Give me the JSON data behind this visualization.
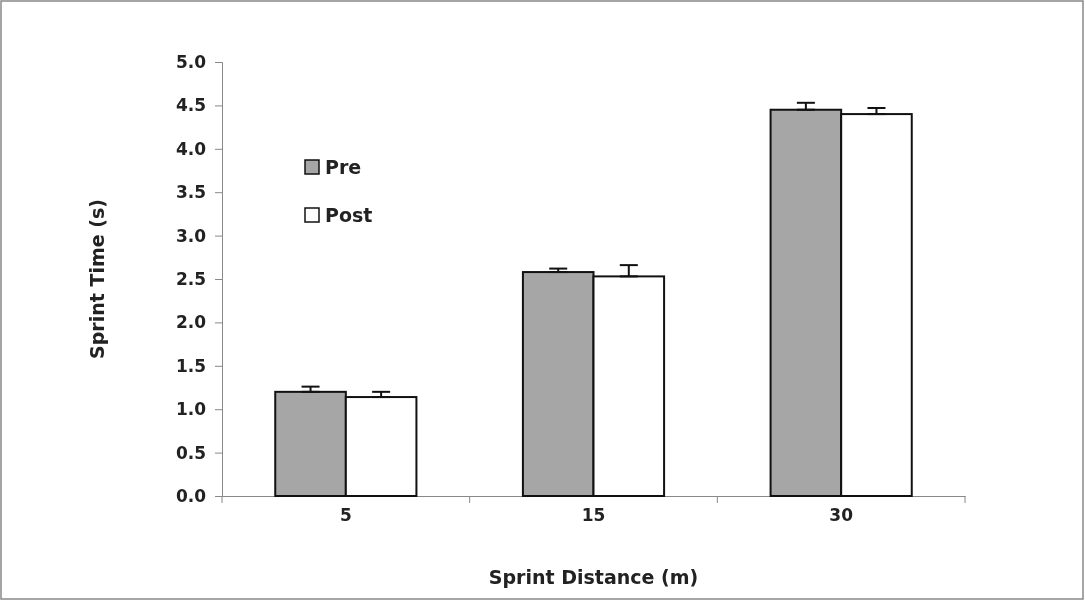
{
  "chart_data": {
    "type": "bar",
    "xlabel": "Sprint Distance (m)",
    "ylabel": "Sprint Time (s)",
    "categories": [
      "5",
      "15",
      "30"
    ],
    "series": [
      {
        "name": "Pre",
        "color": "#a6a6a6",
        "values": [
          1.2,
          2.58,
          4.45
        ],
        "errors": [
          [
            1.2,
            1.26
          ],
          [
            2.58,
            2.62
          ],
          [
            4.45,
            4.53
          ]
        ]
      },
      {
        "name": "Post",
        "color": "#ffffff",
        "values": [
          1.14,
          2.53,
          4.4
        ],
        "errors": [
          [
            1.14,
            1.2
          ],
          [
            2.53,
            2.66
          ],
          [
            4.4,
            4.47
          ]
        ]
      }
    ],
    "ylim": [
      0,
      5
    ],
    "yticks": [
      {
        "value": 0,
        "label": "0.0"
      },
      {
        "value": 0.5,
        "label": "0.5"
      },
      {
        "value": 1,
        "label": "1.0"
      },
      {
        "value": 1.5,
        "label": "1.5"
      },
      {
        "value": 2,
        "label": "2.0"
      },
      {
        "value": 2.5,
        "label": "2.5"
      },
      {
        "value": 3,
        "label": "3.0"
      },
      {
        "value": 3.5,
        "label": "3.5"
      },
      {
        "value": 4,
        "label": "4.0"
      },
      {
        "value": 4.5,
        "label": "4.5"
      },
      {
        "value": 5,
        "label": "5.0"
      }
    ],
    "legend": "top left",
    "grid": false
  }
}
